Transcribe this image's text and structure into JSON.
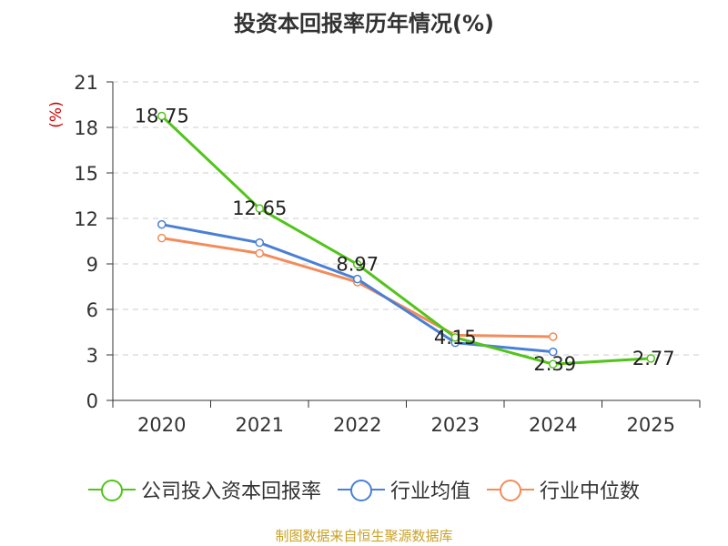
{
  "chart_data": {
    "type": "line",
    "title": "投资本回报率历年情况(%)",
    "ylabel": "(%)",
    "xlabel": "",
    "categories": [
      "2020",
      "2021",
      "2022",
      "2023",
      "2024",
      "2025"
    ],
    "ylim": [
      0,
      21
    ],
    "yticks": [
      0,
      3,
      6,
      9,
      12,
      15,
      18,
      21
    ],
    "grid": "horizontal dashed",
    "legend_position": "bottom",
    "series": [
      {
        "name": "公司投入资本回报率",
        "color": "#52c41a",
        "values": [
          18.75,
          12.65,
          8.97,
          4.15,
          2.39,
          2.77
        ],
        "data_labels": [
          "18.75",
          "12.65",
          "8.97",
          "4.15",
          "2.39",
          "2.77"
        ]
      },
      {
        "name": "行业均值",
        "color": "#4a7fd6",
        "values": [
          11.6,
          10.4,
          8.0,
          3.8,
          3.2,
          null
        ]
      },
      {
        "name": "行业中位数",
        "color": "#f28c5a",
        "values": [
          10.7,
          9.7,
          7.8,
          4.3,
          4.2,
          null
        ]
      }
    ]
  },
  "footer": {
    "source": "制图数据来自恒生聚源数据库"
  }
}
